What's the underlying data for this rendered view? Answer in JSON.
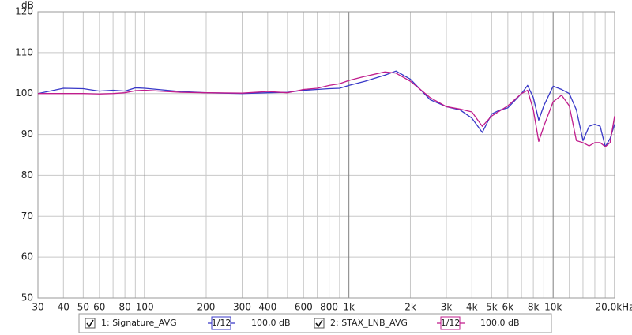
{
  "chart_data": {
    "type": "line",
    "y_label": "dB",
    "xscale": "log",
    "grid": true,
    "xlim": [
      30,
      20000
    ],
    "ylim": [
      50,
      120
    ],
    "xticks": [
      30,
      40,
      50,
      60,
      80,
      100,
      200,
      300,
      400,
      600,
      800,
      {
        "value": 1000,
        "label": "1k"
      },
      {
        "value": 2000,
        "label": "2k"
      },
      {
        "value": 3000,
        "label": "3k"
      },
      {
        "value": 4000,
        "label": "4k"
      },
      {
        "value": 5000,
        "label": "5k"
      },
      {
        "value": 6000,
        "label": "6k"
      },
      {
        "value": 8000,
        "label": "8k"
      },
      {
        "value": 10000,
        "label": "10k"
      },
      {
        "value": 20000,
        "label": "20,0kHz"
      }
    ],
    "xminorticks": [
      70,
      90,
      500,
      700,
      900,
      7000,
      9000,
      12000,
      14000,
      16000,
      18000
    ],
    "yticks": [
      50,
      60,
      70,
      80,
      90,
      100,
      110,
      120
    ],
    "x": [
      30,
      40,
      50,
      60,
      70,
      80,
      90,
      100,
      150,
      200,
      300,
      400,
      500,
      600,
      700,
      800,
      900,
      1000,
      1200,
      1500,
      1700,
      2000,
      2500,
      3000,
      3500,
      4000,
      4500,
      5000,
      5500,
      6000,
      7000,
      7500,
      8000,
      8500,
      9000,
      10000,
      11000,
      12000,
      13000,
      14000,
      15000,
      16000,
      17000,
      18000,
      19000,
      20000
    ],
    "series": [
      {
        "name": "1: Signature_AVG",
        "smoothing": "1/12",
        "level": "100,0 dB",
        "color": "#3838c8",
        "values": [
          100,
          101.3,
          101.2,
          100.6,
          100.8,
          100.6,
          101.4,
          101.3,
          100.5,
          100.2,
          100,
          100.2,
          100.3,
          100.8,
          101,
          101.2,
          101.3,
          102,
          103,
          104.5,
          105.5,
          103.5,
          98.5,
          96.8,
          96,
          94,
          90.5,
          95,
          96,
          96.5,
          100,
          102,
          99,
          93.5,
          97,
          101.8,
          101,
          100,
          96,
          88.5,
          92,
          92.5,
          92,
          87,
          89,
          92.5
        ]
      },
      {
        "name": "2: STAX_LNB_AVG",
        "smoothing": "1/12",
        "level": "100,0 dB",
        "color": "#c01c8c",
        "values": [
          100,
          100,
          100,
          99.9,
          100,
          100.2,
          100.7,
          100.8,
          100.3,
          100.2,
          100.1,
          100.5,
          100.2,
          101,
          101.3,
          102,
          102.4,
          103.2,
          104.2,
          105.3,
          105,
          103,
          99,
          96.8,
          96.2,
          95.5,
          92,
          94.5,
          95.8,
          97,
          100,
          100.8,
          96,
          88.3,
          92,
          98,
          99.6,
          97,
          88.5,
          88,
          87.2,
          88,
          88,
          87,
          88,
          94.5
        ]
      }
    ]
  }
}
